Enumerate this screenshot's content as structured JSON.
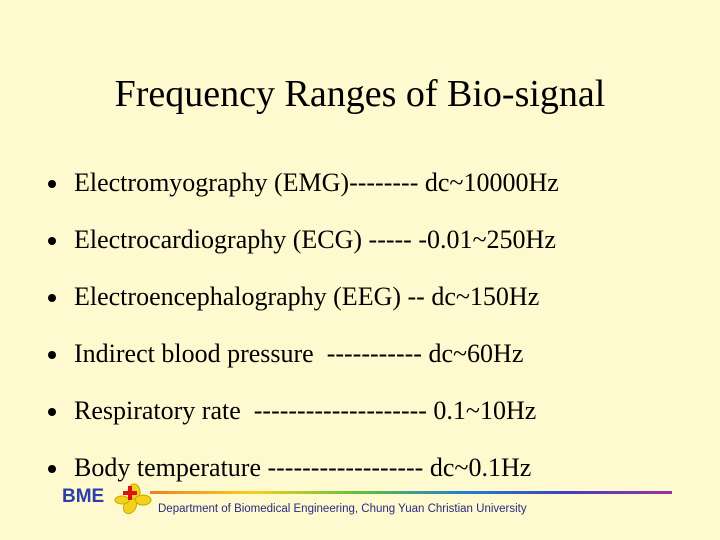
{
  "title": "Frequency Ranges of Bio-signal",
  "bullets": [
    "Electromyography (EMG)-------- dc~10000Hz",
    "Electrocardiography (ECG) ----- -0.01~250Hz",
    "Electroencephalography (EEG) -- dc~150Hz",
    "Indirect blood pressure  ----------- dc~60Hz",
    "Respiratory rate  -------------------- 0.1~10Hz",
    "Body temperature ------------------ dc~0.1Hz"
  ],
  "footer": {
    "logo": "BME",
    "text": "Department of Biomedical Engineering, Chung Yuan Christian University"
  }
}
